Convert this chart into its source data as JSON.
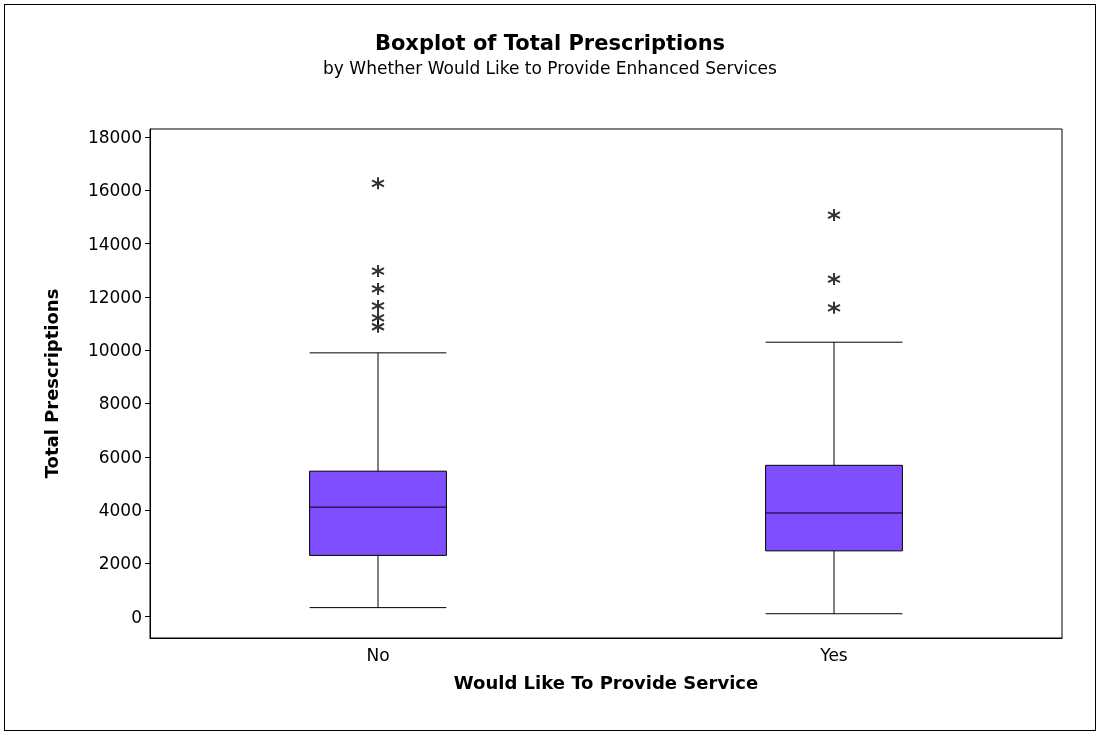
{
  "chart_data": {
    "type": "box",
    "title": "Boxplot of Total Prescriptions",
    "subtitle": "by Whether Would Like to Provide Enhanced Services",
    "xlabel": "Would Like To Provide Service",
    "ylabel": "Total Prescriptions",
    "categories": [
      "No",
      "Yes"
    ],
    "series": [
      {
        "color": "#7f4fff",
        "boxes": [
          {
            "low": 340,
            "q1": 2300,
            "median": 4110,
            "q3": 5460,
            "high": 9900,
            "outliers": [
              16260,
              12970,
              12300,
              11660,
              11210,
              10880
            ]
          },
          {
            "low": 110,
            "q1": 2470,
            "median": 3890,
            "q3": 5680,
            "high": 10300,
            "outliers": [
              15070,
              12670,
              11590
            ]
          }
        ]
      }
    ],
    "ylim": [
      -800,
      18300
    ],
    "yticks": [
      0,
      2000,
      4000,
      6000,
      8000,
      10000,
      12000,
      14000,
      16000,
      18000
    ],
    "grid": false,
    "marker": "star"
  }
}
